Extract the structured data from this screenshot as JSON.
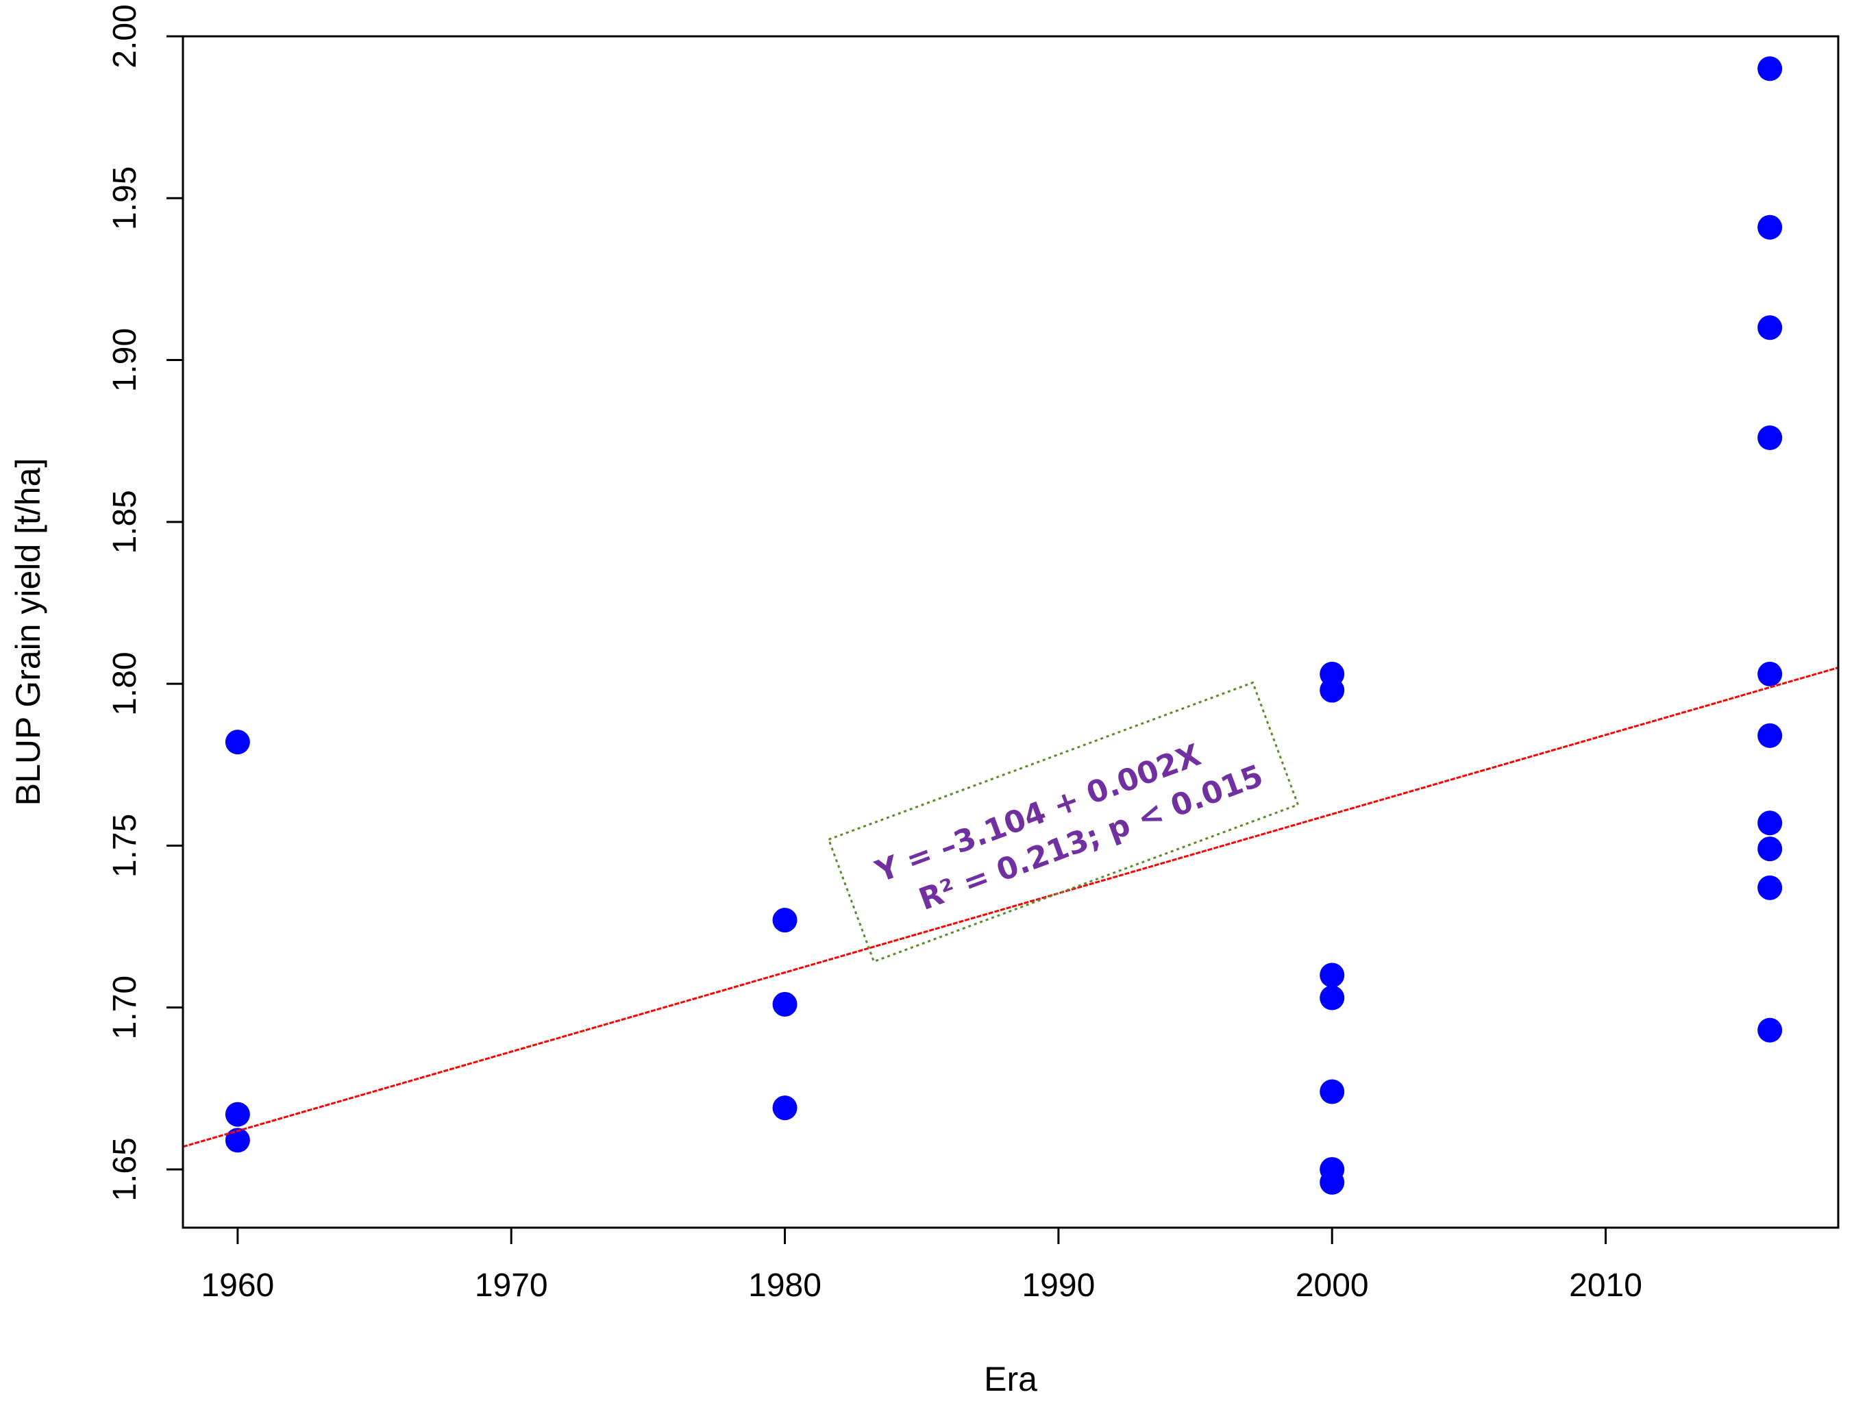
{
  "chart_data": {
    "type": "scatter",
    "title": "",
    "xlabel": "Era",
    "ylabel": "BLUP Grain yield [t/ha]",
    "xlim": [
      1958,
      2018.5
    ],
    "ylim": [
      1.632,
      2.0
    ],
    "x_ticks": [
      1960,
      1970,
      1980,
      1990,
      2000,
      2010
    ],
    "y_ticks": [
      1.65,
      1.7,
      1.75,
      1.8,
      1.85,
      1.9,
      1.95,
      2.0
    ],
    "x_tick_labels": [
      "1960",
      "1970",
      "1980",
      "1990",
      "2000",
      "2010"
    ],
    "y_tick_labels": [
      "1.65",
      "1.70",
      "1.75",
      "1.80",
      "1.85",
      "1.90",
      "1.95",
      "2.00"
    ],
    "grid": false,
    "point_color": "#0000ff",
    "line_color": "#ff0000",
    "annotation_color": "#7030a0",
    "annotation_box_color": "#5a8a2a",
    "points": [
      {
        "x": 1960,
        "y": 1.782
      },
      {
        "x": 1960,
        "y": 1.667
      },
      {
        "x": 1960,
        "y": 1.659
      },
      {
        "x": 1980,
        "y": 1.727
      },
      {
        "x": 1980,
        "y": 1.701
      },
      {
        "x": 1980,
        "y": 1.669
      },
      {
        "x": 2000,
        "y": 1.803
      },
      {
        "x": 2000,
        "y": 1.798
      },
      {
        "x": 2000,
        "y": 1.71
      },
      {
        "x": 2000,
        "y": 1.703
      },
      {
        "x": 2000,
        "y": 1.674
      },
      {
        "x": 2000,
        "y": 1.65
      },
      {
        "x": 2000,
        "y": 1.646
      },
      {
        "x": 2016,
        "y": 1.99
      },
      {
        "x": 2016,
        "y": 1.941
      },
      {
        "x": 2016,
        "y": 1.91
      },
      {
        "x": 2016,
        "y": 1.876
      },
      {
        "x": 2016,
        "y": 1.803
      },
      {
        "x": 2016,
        "y": 1.784
      },
      {
        "x": 2016,
        "y": 1.757
      },
      {
        "x": 2016,
        "y": 1.749
      },
      {
        "x": 2016,
        "y": 1.737
      },
      {
        "x": 2016,
        "y": 1.693
      }
    ],
    "fit_line": {
      "x": [
        1958,
        2018.5
      ],
      "y": [
        1.657,
        1.805
      ]
    },
    "annotation": {
      "line1": "Y = –3.104 + 0.002X",
      "line2": "R² = 0.213; p < 0.015"
    }
  }
}
